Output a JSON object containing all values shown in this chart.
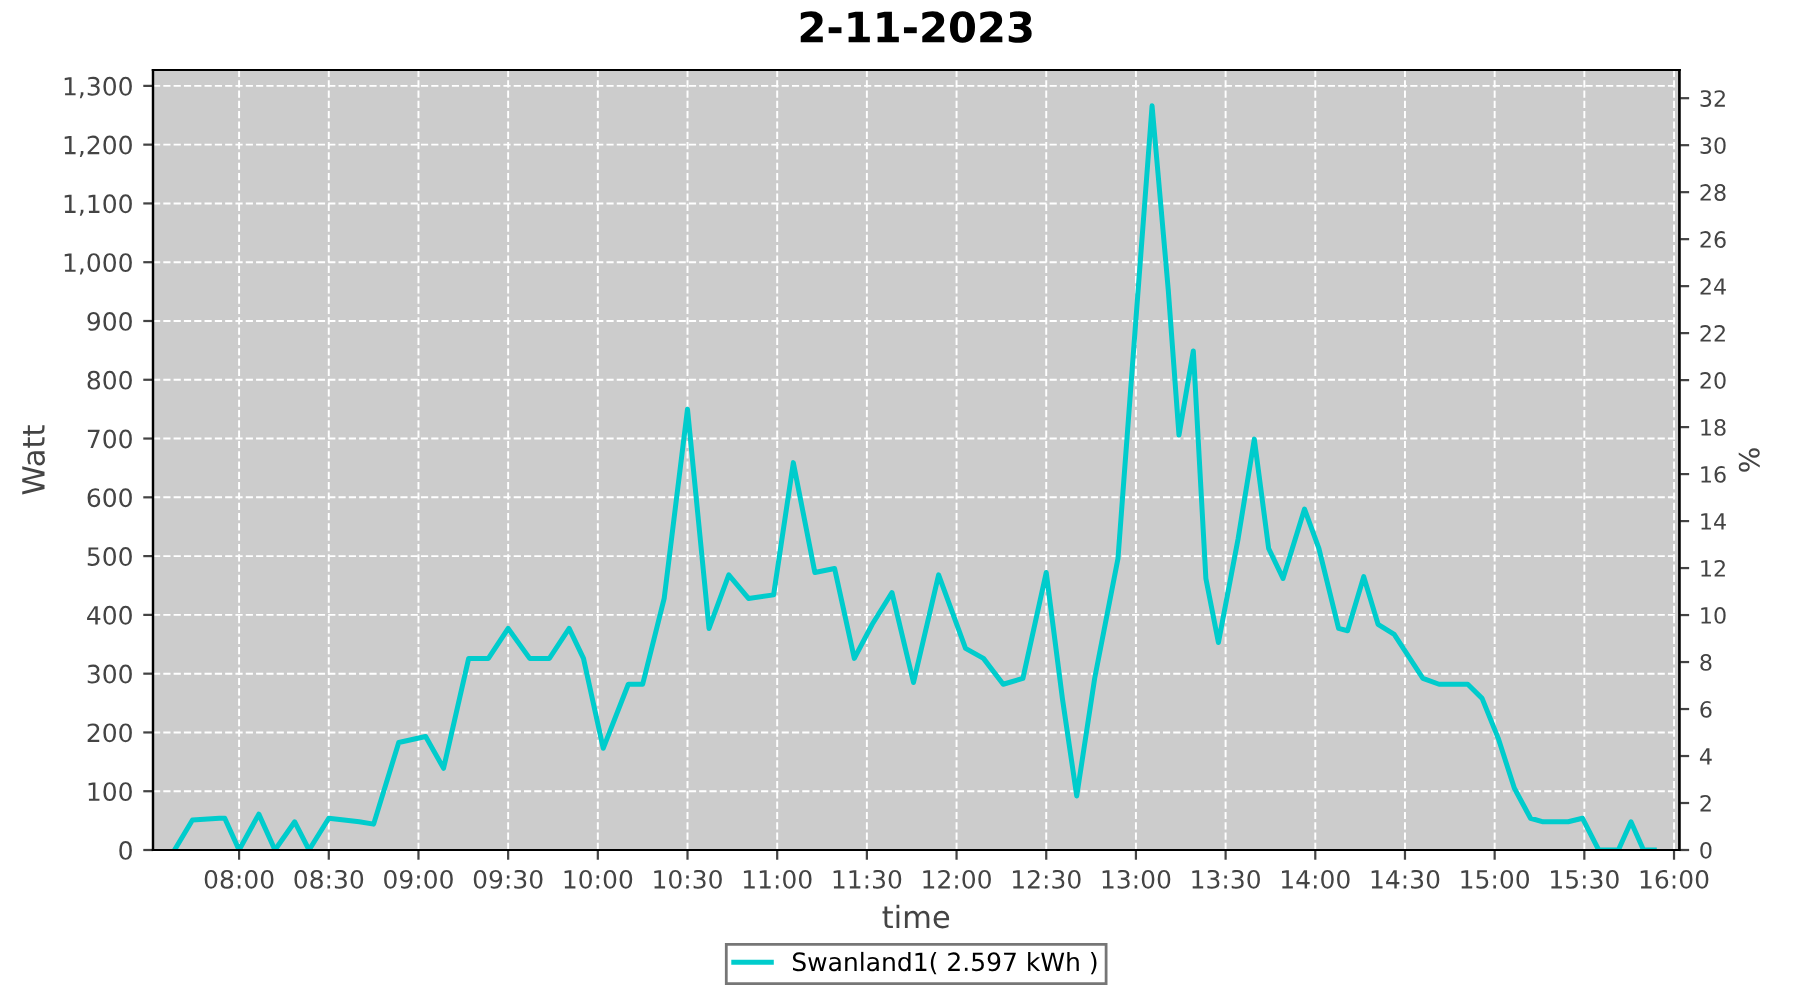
{
  "chart_data": {
    "type": "line",
    "title": "2-11-2023",
    "xlabel": "time",
    "ylabel": "Watt",
    "y2label": "%",
    "xlim": [
      7.52,
      16.03
    ],
    "ylim": [
      0,
      1327
    ],
    "y2lim": [
      0,
      33.2
    ],
    "xticks": [
      {
        "value": 8,
        "label": "08:00"
      },
      {
        "value": 8.5,
        "label": "08:30"
      },
      {
        "value": 9,
        "label": "09:00"
      },
      {
        "value": 9.5,
        "label": "09:30"
      },
      {
        "value": 10,
        "label": "10:00"
      },
      {
        "value": 10.5,
        "label": "10:30"
      },
      {
        "value": 11,
        "label": "11:00"
      },
      {
        "value": 11.5,
        "label": "11:30"
      },
      {
        "value": 12,
        "label": "12:00"
      },
      {
        "value": 12.5,
        "label": "12:30"
      },
      {
        "value": 13,
        "label": "13:00"
      },
      {
        "value": 13.5,
        "label": "13:30"
      },
      {
        "value": 14,
        "label": "14:00"
      },
      {
        "value": 14.5,
        "label": "14:30"
      },
      {
        "value": 15,
        "label": "15:00"
      },
      {
        "value": 15.5,
        "label": "15:30"
      },
      {
        "value": 16,
        "label": "16:00"
      }
    ],
    "yticks": [
      0,
      100,
      200,
      300,
      400,
      500,
      600,
      700,
      800,
      900,
      {
        "value": 1000,
        "label": "1,000"
      },
      {
        "value": 1100,
        "label": "1,100"
      },
      {
        "value": 1200,
        "label": "1,200"
      },
      {
        "value": 1300,
        "label": "1,300"
      }
    ],
    "y2ticks": [
      0,
      2,
      4,
      6,
      8,
      10,
      12,
      14,
      16,
      18,
      20,
      22,
      24,
      26,
      28,
      30,
      32
    ],
    "grid": true,
    "legend": "bottom",
    "marker": "none",
    "line_style": "solid",
    "series": [
      {
        "name": "Swanland1( 2.597 kWh )",
        "color": "#00cccc",
        "x": [
          7.64,
          7.74,
          7.89,
          7.92,
          8.0,
          8.11,
          8.2,
          8.31,
          8.39,
          8.5,
          8.67,
          8.75,
          8.89,
          9.04,
          9.14,
          9.28,
          9.39,
          9.5,
          9.62,
          9.73,
          9.84,
          9.92,
          10.03,
          10.17,
          10.25,
          10.37,
          10.5,
          10.62,
          10.73,
          10.84,
          10.98,
          11.09,
          11.21,
          11.32,
          11.43,
          11.53,
          11.64,
          11.76,
          11.9,
          12.05,
          12.15,
          12.26,
          12.37,
          12.5,
          12.59,
          12.67,
          12.77,
          12.9,
          13.0,
          13.09,
          13.18,
          13.24,
          13.32,
          13.39,
          13.46,
          13.57,
          13.66,
          13.74,
          13.82,
          13.94,
          14.02,
          14.13,
          14.18,
          14.27,
          14.35,
          14.44,
          14.6,
          14.69,
          14.85,
          14.93,
          15.02,
          15.11,
          15.2,
          15.27,
          15.41,
          15.49,
          15.58,
          15.69,
          15.76,
          15.83,
          15.89
        ],
        "values": [
          0,
          51,
          54,
          54,
          0,
          61,
          0,
          48,
          0,
          54,
          48,
          44,
          183,
          193,
          139,
          326,
          326,
          377,
          326,
          326,
          377,
          326,
          173,
          282,
          282,
          428,
          750,
          377,
          468,
          428,
          434,
          659,
          472,
          479,
          326,
          384,
          438,
          285,
          468,
          343,
          326,
          282,
          292,
          472,
          258,
          92,
          292,
          496,
          903,
          1266,
          954,
          706,
          849,
          462,
          353,
          530,
          699,
          513,
          462,
          580,
          513,
          377,
          373,
          465,
          384,
          367,
          292,
          282,
          282,
          258,
          190,
          105,
          54,
          48,
          48,
          54,
          0,
          0,
          48,
          0,
          0
        ]
      }
    ]
  }
}
